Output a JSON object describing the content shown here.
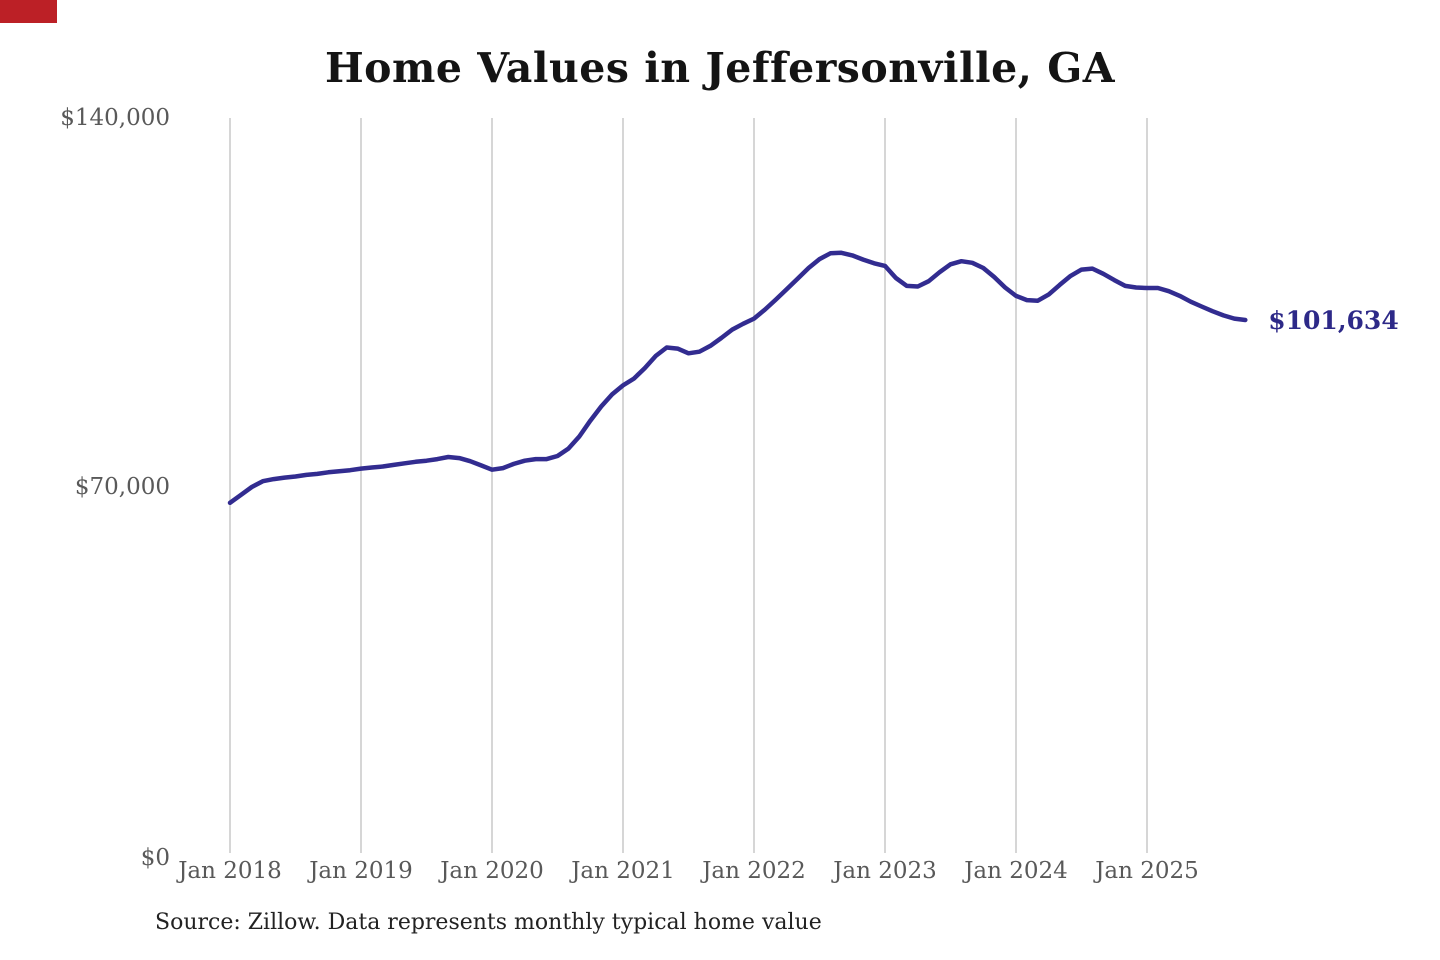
{
  "title": "Home Values in Jeffersonville, GA",
  "source_note": "Source: Zillow. Data represents monthly typical home value",
  "corner_marker_color": "#bc2026",
  "chart_data": {
    "type": "line",
    "title": "Home Values in Jeffersonville, GA",
    "xlabel": "",
    "ylabel": "",
    "x_start": "2018-01",
    "x_end": "2025-10",
    "x_tick_month_indices": [
      0,
      12,
      24,
      36,
      48,
      60,
      72,
      84
    ],
    "x_tick_labels": [
      "Jan 2018",
      "Jan 2019",
      "Jan 2020",
      "Jan 2021",
      "Jan 2022",
      "Jan 2023",
      "Jan 2024",
      "Jan 2025"
    ],
    "y_ticks": [
      0,
      70000,
      140000
    ],
    "y_tick_labels": [
      "$0",
      "$70,000",
      "$140,000"
    ],
    "ylim": [
      0,
      140000
    ],
    "grid": "vertical-only",
    "legend": false,
    "line_color": "#322c90",
    "grid_color": "#c8c8c8",
    "end_annotation": "$101,634",
    "end_annotation_color": "#2d2988",
    "series": [
      {
        "name": "Monthly typical home value",
        "values": [
          66900,
          68400,
          69900,
          71000,
          71400,
          71700,
          71900,
          72200,
          72400,
          72700,
          72900,
          73100,
          73400,
          73600,
          73800,
          74100,
          74400,
          74700,
          74900,
          75200,
          75600,
          75400,
          74800,
          74000,
          73200,
          73500,
          74300,
          74900,
          75200,
          75200,
          75800,
          77200,
          79500,
          82500,
          85200,
          87500,
          89200,
          90500,
          92500,
          94800,
          96400,
          96200,
          95300,
          95600,
          96700,
          98200,
          99800,
          100900,
          101900,
          103600,
          105500,
          107500,
          109500,
          111500,
          113200,
          114300,
          114400,
          113900,
          113100,
          112400,
          111900,
          109600,
          108100,
          108000,
          109000,
          110700,
          112200,
          112800,
          112500,
          111500,
          109800,
          107800,
          106200,
          105400,
          105300,
          106500,
          108300,
          110000,
          111200,
          111400,
          110400,
          109200,
          108100,
          107800,
          107700,
          107700,
          107100,
          106200,
          105100,
          104200,
          103300,
          102500,
          101900,
          101634
        ]
      }
    ]
  }
}
